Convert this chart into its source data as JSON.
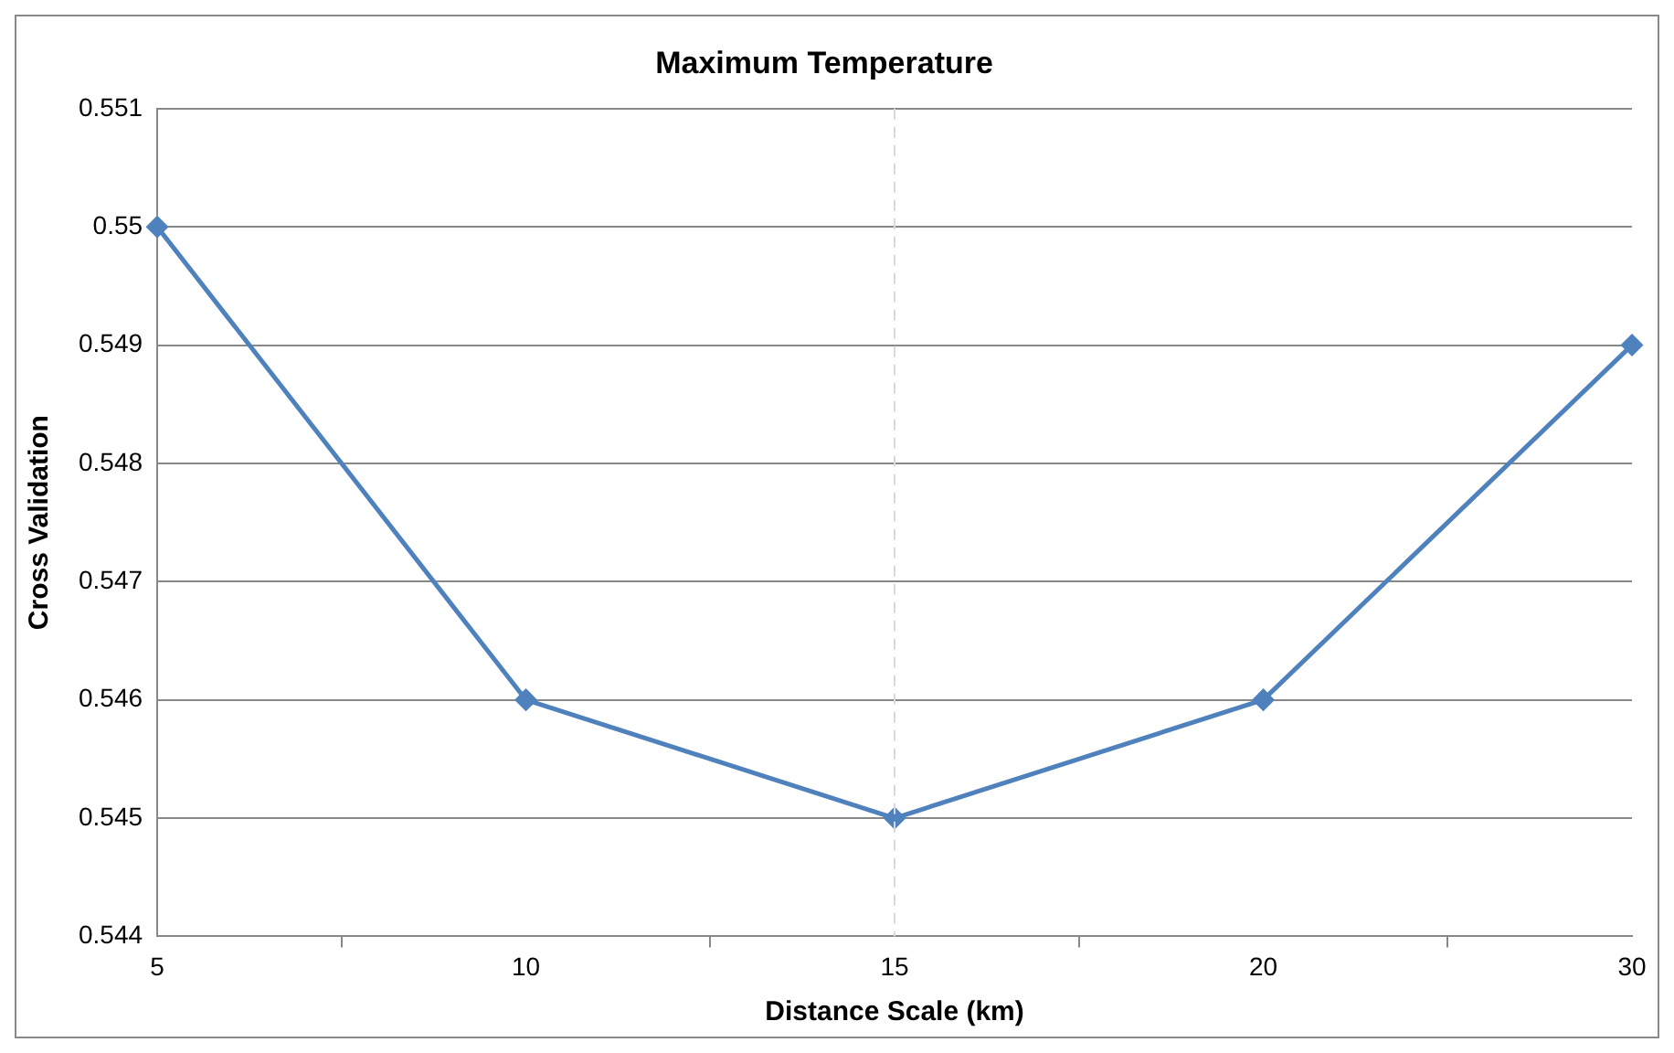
{
  "chart_data": {
    "type": "line",
    "title": "Maximum Temperature",
    "xlabel": "Distance Scale (km)",
    "ylabel": "Cross Validation",
    "categories": [
      "5",
      "10",
      "15",
      "20",
      "30"
    ],
    "series": [
      {
        "color": "#4f81bd",
        "values": [
          0.55,
          0.546,
          0.545,
          0.546,
          0.549
        ]
      }
    ],
    "ylim": [
      0.544,
      0.551
    ],
    "yticks": [
      0.544,
      0.545,
      0.546,
      0.547,
      0.548,
      0.549,
      0.55,
      0.551
    ],
    "grid": "y",
    "legend": false,
    "marker": "diamond",
    "line_style": "solid",
    "ref_lines": [
      {
        "axis": "x",
        "value": "15",
        "color": "#d9d9d9",
        "line_style": "dashed"
      }
    ]
  }
}
